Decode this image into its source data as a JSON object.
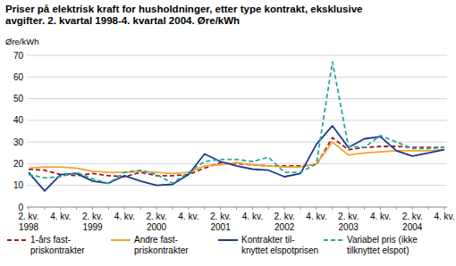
{
  "chart_data": {
    "type": "line",
    "title": "Priser på elektrisk kraft for husholdninger, etter type kontrakt, eksklusive\navgifter.  2. kvartal 1998-4. kvartal 2004. Øre/kWh",
    "y_label": "Øre/kWh",
    "categories": [
      "2. kv.\n1998",
      null,
      "4. kv.",
      null,
      "2. kv.\n1999",
      null,
      "4. kv.",
      null,
      "2. kv.\n2000",
      null,
      "4. kv.",
      null,
      "2. kv.\n2001",
      null,
      "4. kv.",
      null,
      "2. kv.\n2002",
      null,
      "4. kv.",
      null,
      "2. kv.\n2003",
      null,
      "4. kv.",
      null,
      "2. kv.\n2004",
      null,
      "4. kv."
    ],
    "series": [
      {
        "name": "1-års fast-\npriskontrakter",
        "color": "#9e1b22",
        "line_style": "dashed",
        "values": [
          17.5,
          17,
          15,
          14.5,
          15.5,
          14.5,
          14,
          16,
          14.5,
          14.5,
          15,
          18,
          20.5,
          20,
          19.5,
          19,
          19,
          19,
          19.5,
          32,
          26.5,
          27.5,
          28,
          28,
          27.5,
          27.5,
          27.5
        ]
      },
      {
        "name": "Andre fast-\npriskontrakter",
        "color": "#f4a431",
        "line_style": "solid",
        "values": [
          18,
          18.5,
          18.5,
          18,
          16.5,
          16,
          16,
          16.5,
          16,
          15.5,
          16,
          19,
          19.5,
          20.5,
          19.5,
          19,
          18.5,
          18.5,
          20,
          30,
          24,
          25,
          25.5,
          26,
          26,
          26,
          26.5
        ]
      },
      {
        "name": "Kontrakter til-\nknyttet elspotprisen",
        "color": "#1c3a8a",
        "line_style": "solid",
        "values": [
          16,
          7.5,
          15,
          15.5,
          12,
          11,
          14.5,
          12,
          10,
          10.5,
          15,
          24.5,
          21,
          19,
          17.5,
          17,
          14,
          15.5,
          29,
          37.5,
          27.5,
          31.5,
          32.5,
          26,
          23.5,
          25,
          26.5
        ]
      },
      {
        "name": "Variabel pris (ikke\ntilknyttet elspot)",
        "color": "#2aa79f",
        "line_style": "dashed",
        "values": [
          15,
          13.5,
          14,
          16,
          13,
          11,
          16,
          17,
          15,
          11,
          16,
          21,
          22,
          22,
          21,
          23,
          16,
          16,
          20,
          67,
          28,
          27.5,
          33,
          30,
          27,
          27,
          27.5
        ]
      }
    ],
    "ylim": [
      0,
      70
    ],
    "yticks": [
      0,
      10,
      20,
      30,
      40,
      50,
      60,
      70
    ],
    "grid": true,
    "legend": "bottom"
  }
}
